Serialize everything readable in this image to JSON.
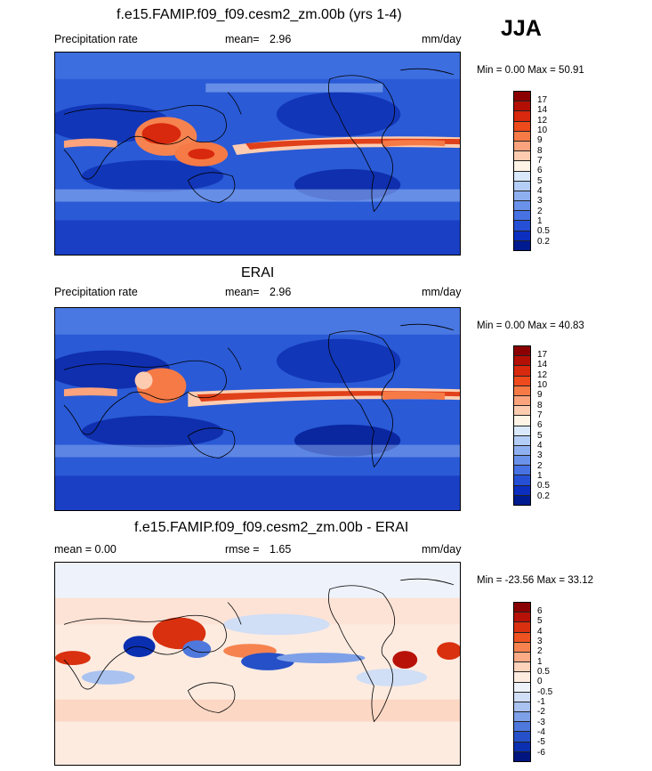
{
  "season": "JJA",
  "panels": [
    {
      "title": "f.e15.FAMIP.f09_f09.cesm2_zm.00b (yrs 1-4)",
      "left_label": "Precipitation rate",
      "stat_label": "mean=",
      "stat_value": "2.96",
      "units": "mm/day",
      "range_text": "Min =   0.00 Max =  50.91",
      "levels": [
        "17",
        "14",
        "12",
        "10",
        "9",
        "8",
        "7",
        "6",
        "5",
        "4",
        "3",
        "2",
        "1",
        "0.5",
        "0.2"
      ],
      "colors": [
        "#8b0000",
        "#b40f05",
        "#d8280d",
        "#ee4a1c",
        "#f67a46",
        "#fba37c",
        "#fdccb0",
        "#fff4e6",
        "#d9e8fb",
        "#b3cdf6",
        "#8fb0f0",
        "#6a92ea",
        "#4672e4",
        "#2550d6",
        "#0c2fc0",
        "#001a90"
      ]
    },
    {
      "title": "ERAI",
      "left_label": "Precipitation rate",
      "stat_label": "mean=",
      "stat_value": "2.96",
      "units": "mm/day",
      "range_text": "Min =   0.00 Max =  40.83",
      "levels": [
        "17",
        "14",
        "12",
        "10",
        "9",
        "8",
        "7",
        "6",
        "5",
        "4",
        "3",
        "2",
        "1",
        "0.5",
        "0.2"
      ],
      "colors": [
        "#8b0000",
        "#b40f05",
        "#d8280d",
        "#ee4a1c",
        "#f67a46",
        "#fba37c",
        "#fdccb0",
        "#fff4e6",
        "#d9e8fb",
        "#b3cdf6",
        "#8fb0f0",
        "#6a92ea",
        "#4672e4",
        "#2550d6",
        "#0c2fc0",
        "#001a90"
      ]
    },
    {
      "title": "f.e15.FAMIP.f09_f09.cesm2_zm.00b - ERAI",
      "left_label": "mean =   0.00",
      "stat_label": "rmse =",
      "stat_value": "1.65",
      "units": "mm/day",
      "range_text": "Min = -23.56 Max =  33.12",
      "levels": [
        "6",
        "5",
        "4",
        "3",
        "2",
        "1",
        "0.5",
        "0",
        "-0.5",
        "-1",
        "-2",
        "-3",
        "-4",
        "-5",
        "-6"
      ],
      "colors": [
        "#8b0000",
        "#b81208",
        "#d9300f",
        "#ee5220",
        "#f6834f",
        "#fbab86",
        "#fdd3bb",
        "#fdebe0",
        "#eef3fb",
        "#d0def6",
        "#a9c2f0",
        "#7da0e8",
        "#4f78dd",
        "#2550c8",
        "#0a2fb0",
        "#00157f"
      ]
    }
  ]
}
